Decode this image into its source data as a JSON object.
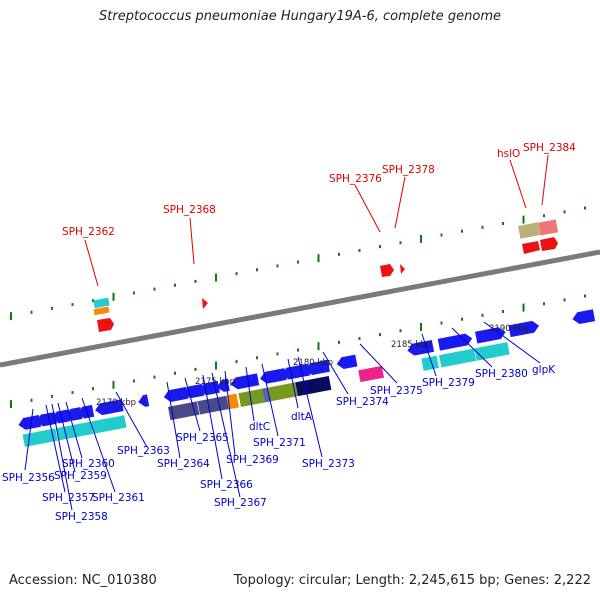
{
  "title": "Streptococcus pneumoniae Hungary19A-6, complete genome",
  "footer": {
    "accession": "Accession: NC_010380",
    "topology": "Topology: circular; Length: 2,245,615 bp; Genes: 2,222"
  },
  "scale_labels": [
    "2170 kbp",
    "2175 kbp",
    "2180 kbp",
    "2185 kbp",
    "2190 kbp"
  ],
  "colors": {
    "gene_blue": "#1a1aee",
    "cyan": "#22cccc",
    "red": "#ee1111",
    "pink": "#ee2288",
    "orange": "#ff8800",
    "olive": "#779922",
    "dark_navy": "#0b0b5e",
    "slate": "#4a4a8a",
    "khaki": "#bbb077",
    "salmon": "#ee7777",
    "green_tick": "#117711",
    "axis": "#7a7a7a",
    "label_blue": "#0000cc",
    "label_red": "#dd0000"
  },
  "labels": {
    "below": [
      "SPH_2356",
      "SPH_2357",
      "SPH_2358",
      "SPH_2359",
      "SPH_2360",
      "SPH_2361",
      "SPH_2363",
      "SPH_2364",
      "SPH_2365",
      "SPH_2366",
      "SPH_2367",
      "SPH_2369",
      "dltC",
      "SPH_2371",
      "dltA",
      "SPH_2373",
      "SPH_2374",
      "SPH_2375",
      "SPH_2379",
      "SPH_2380",
      "glpK"
    ],
    "above": [
      "SPH_2362",
      "SPH_2368",
      "SPH_2376",
      "SPH_2378",
      "hslO",
      "SPH_2384"
    ]
  }
}
